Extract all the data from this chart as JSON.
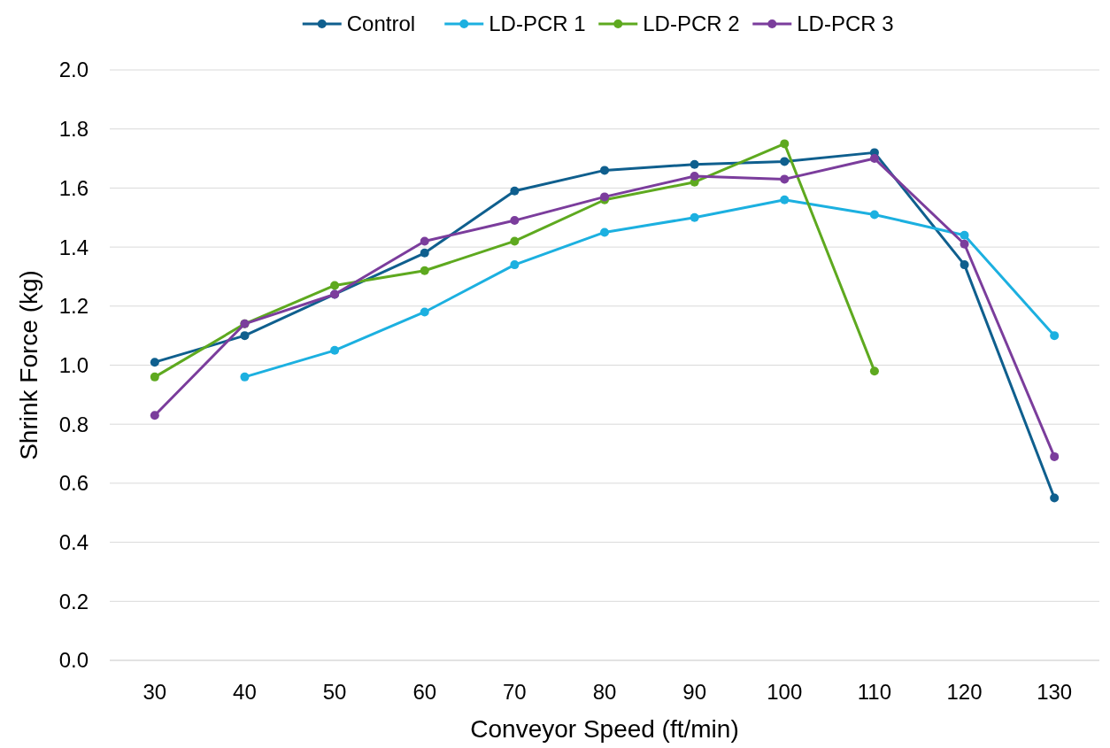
{
  "chart_data": {
    "type": "line",
    "xlabel": "Conveyor Speed (ft/min)",
    "ylabel": "Shrink Force (kg)",
    "categories": [
      "30",
      "40",
      "50",
      "60",
      "70",
      "80",
      "90",
      "100",
      "110",
      "120",
      "130"
    ],
    "series": [
      {
        "name": "Control",
        "color": "#0f5f8e",
        "values": [
          1.01,
          1.1,
          1.24,
          1.38,
          1.59,
          1.66,
          1.68,
          1.69,
          1.72,
          1.34,
          0.55
        ]
      },
      {
        "name": "LD-PCR 1",
        "color": "#1cb0e0",
        "values": [
          null,
          0.96,
          1.05,
          1.18,
          1.34,
          1.45,
          1.5,
          1.56,
          1.51,
          1.44,
          1.1
        ]
      },
      {
        "name": "LD-PCR 2",
        "color": "#5ea91f",
        "values": [
          0.96,
          1.14,
          1.27,
          1.32,
          1.42,
          1.56,
          1.62,
          1.75,
          0.98,
          null,
          null
        ]
      },
      {
        "name": "LD-PCR 3",
        "color": "#7b3d9c",
        "values": [
          0.83,
          1.14,
          1.24,
          1.42,
          1.49,
          1.57,
          1.64,
          1.63,
          1.7,
          1.41,
          0.69
        ]
      }
    ],
    "ylim": [
      0,
      2
    ],
    "yticks": [
      {
        "value": 0,
        "label": "0.0"
      },
      {
        "value": 0.2,
        "label": "0.2"
      },
      {
        "value": 0.4,
        "label": "0.4"
      },
      {
        "value": 0.6,
        "label": "0.6"
      },
      {
        "value": 0.8,
        "label": "0.8"
      },
      {
        "value": 1,
        "label": "1.0"
      },
      {
        "value": 1.2,
        "label": "1.2"
      },
      {
        "value": 1.4,
        "label": "1.4"
      },
      {
        "value": 1.6,
        "label": "1.6"
      },
      {
        "value": 1.8,
        "label": "1.8"
      },
      {
        "value": 2,
        "label": "2.0"
      }
    ],
    "grid": "y",
    "legend": "top",
    "marker": "circle",
    "line_style": "solid"
  }
}
